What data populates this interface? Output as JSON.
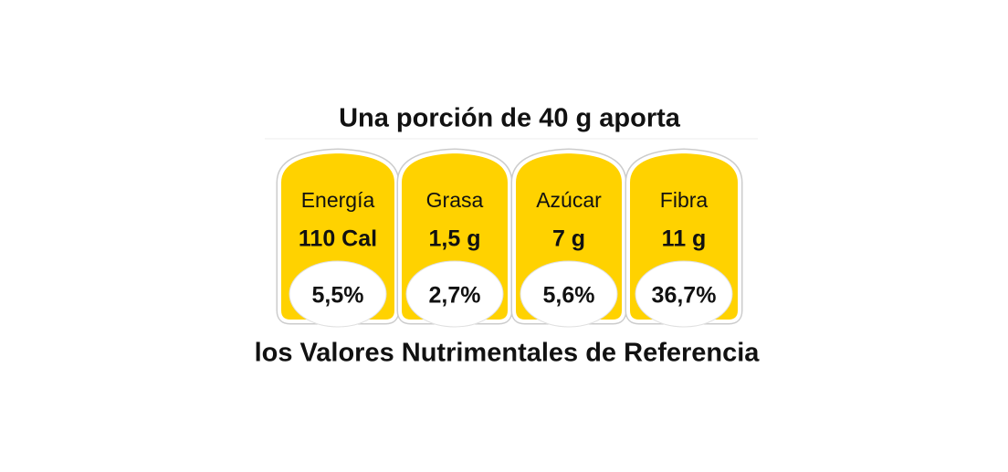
{
  "header": {
    "title": "Una porción de 40 g aporta"
  },
  "items": [
    {
      "name": "Energía",
      "amount": "110 Cal",
      "percent": "5,5%"
    },
    {
      "name": "Grasa",
      "amount": "1,5 g",
      "percent": "2,7%"
    },
    {
      "name": "Azúcar",
      "amount": "7 g",
      "percent": "5,6%"
    },
    {
      "name": "Fibra",
      "amount": "11 g",
      "percent": "36,7%"
    }
  ],
  "footer": {
    "text": "los Valores Nutrimentales de Referencia"
  }
}
